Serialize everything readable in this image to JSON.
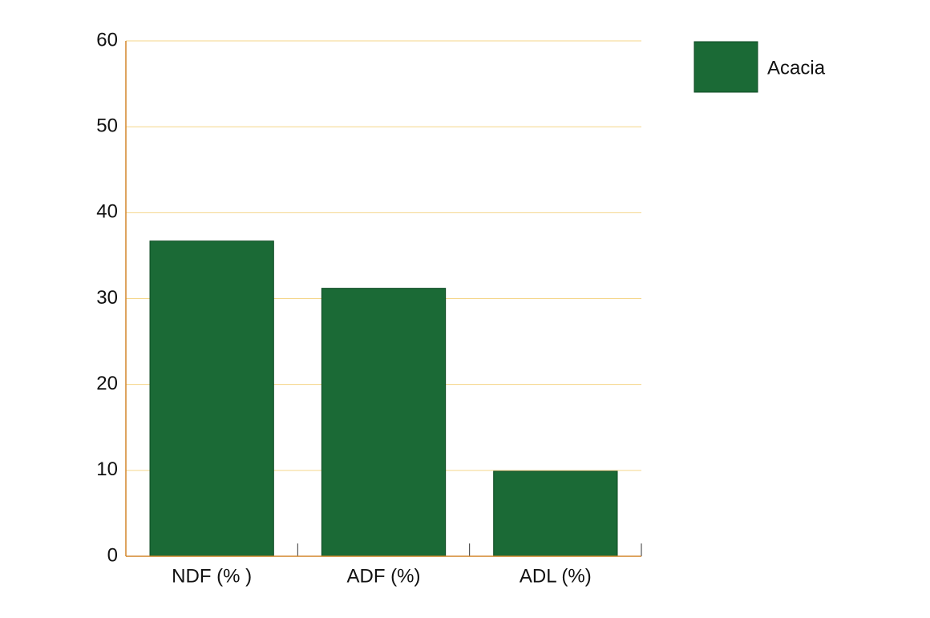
{
  "chart_data": {
    "type": "bar",
    "categories": [
      "NDF (% )",
      "ADF (%)",
      "ADL (%)"
    ],
    "series": [
      {
        "name": "Acacia",
        "color": "#1b6a36",
        "values": [
          36.7,
          31.2,
          9.9
        ]
      }
    ],
    "ylim": [
      0,
      60
    ],
    "yticks": [
      0,
      10,
      20,
      30,
      40,
      50,
      60
    ],
    "grid": true,
    "legend": "right"
  }
}
